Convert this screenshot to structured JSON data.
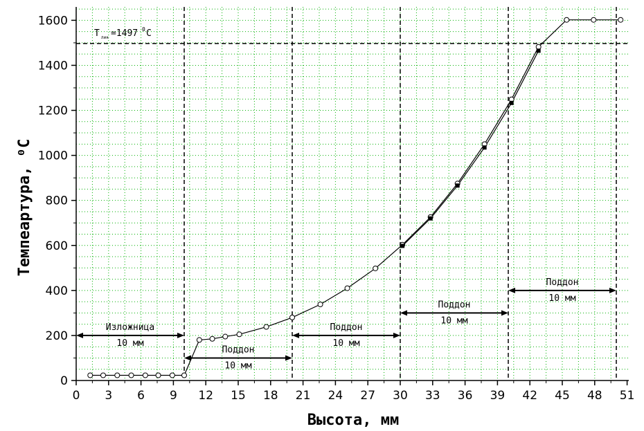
{
  "chart_data": {
    "type": "line",
    "title": "",
    "xlabel": "Высота, мм",
    "ylabel": "Темпеартура, ⁰С",
    "xlim": [
      0,
      51
    ],
    "ylim": [
      0,
      1650
    ],
    "x_ticks": [
      0,
      3,
      6,
      9,
      12,
      15,
      18,
      21,
      24,
      27,
      30,
      33,
      36,
      39,
      42,
      45,
      48,
      51
    ],
    "y_ticks": [
      0,
      200,
      400,
      600,
      800,
      1000,
      1200,
      1400,
      1600
    ],
    "grid": true,
    "series": [
      {
        "marker": "open-circle",
        "x": [
          1.3,
          2.5,
          3.8,
          5.1,
          6.4,
          7.6,
          8.9,
          10.0,
          11.4,
          12.6,
          13.8,
          15.1,
          17.6,
          20.0,
          22.6,
          25.1,
          27.7,
          30.2,
          32.8,
          35.3,
          37.8,
          40.3,
          42.8,
          45.4,
          47.9,
          50.4
        ],
        "y": [
          23,
          23,
          23,
          23,
          23,
          23,
          23,
          23,
          180,
          185,
          195,
          205,
          238,
          280,
          338,
          410,
          498,
          603,
          726,
          875,
          1050,
          1249,
          1482,
          1602,
          1602,
          1602
        ]
      },
      {
        "marker": "filled-square",
        "x": [
          30.2,
          32.8,
          35.3,
          37.8,
          40.3,
          42.8
        ],
        "y": [
          598,
          720,
          866,
          1035,
          1233,
          1465
        ]
      }
    ],
    "reference_lines": [
      {
        "axis": "y",
        "value": 1497,
        "label": "T_лик=1497⁰С"
      },
      {
        "axis": "x",
        "value": 10
      },
      {
        "axis": "x",
        "value": 20
      },
      {
        "axis": "x",
        "value": 30
      },
      {
        "axis": "x",
        "value": 40
      },
      {
        "axis": "x",
        "value": 50
      }
    ],
    "annotations": [
      {
        "x1": 0,
        "x2": 10,
        "y": 200,
        "top": "Изложница",
        "bottom": "10 мм"
      },
      {
        "x1": 10,
        "x2": 20,
        "y": 100,
        "top": "Поддон",
        "bottom": "10 мм"
      },
      {
        "x1": 20,
        "x2": 30,
        "y": 200,
        "top": "Поддон",
        "bottom": "10 мм"
      },
      {
        "x1": 30,
        "x2": 40,
        "y": 300,
        "top": "Поддон",
        "bottom": "10 мм"
      },
      {
        "x1": 40,
        "x2": 50,
        "y": 400,
        "top": "Поддон",
        "bottom": "10 мм"
      }
    ],
    "colors": {
      "grid": "#00b000",
      "line": "#000000"
    }
  }
}
